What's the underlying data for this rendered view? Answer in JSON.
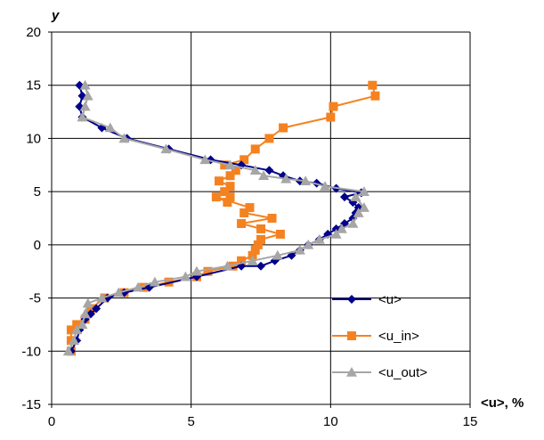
{
  "chart_data": {
    "type": "scatter",
    "title": "",
    "xlabel": "<u>, %",
    "ylabel": "y",
    "xlim": [
      0,
      15
    ],
    "ylim": [
      -15,
      20
    ],
    "xticks": [
      "0",
      "5",
      "10",
      "15"
    ],
    "yticks": [
      "-15",
      "-10",
      "-5",
      "0",
      "5",
      "10",
      "15",
      "20"
    ],
    "grid": true,
    "legend": "right",
    "series": [
      {
        "name": "<u>",
        "color": "#00008B",
        "marker": "diamond",
        "points": [
          [
            1.0,
            15
          ],
          [
            1.1,
            14
          ],
          [
            1.0,
            13
          ],
          [
            1.1,
            12
          ],
          [
            1.8,
            11
          ],
          [
            2.7,
            10
          ],
          [
            4.2,
            9
          ],
          [
            5.7,
            8
          ],
          [
            6.8,
            7.5
          ],
          [
            7.8,
            7
          ],
          [
            8.3,
            6.5
          ],
          [
            8.9,
            6
          ],
          [
            9.5,
            5.8
          ],
          [
            10.2,
            5.3
          ],
          [
            11.1,
            4.9
          ],
          [
            10.5,
            4.5
          ],
          [
            10.8,
            4
          ],
          [
            11.0,
            3.5
          ],
          [
            10.9,
            3
          ],
          [
            10.8,
            2.5
          ],
          [
            10.5,
            2
          ],
          [
            10.2,
            1.5
          ],
          [
            9.9,
            1
          ],
          [
            9.6,
            0.5
          ],
          [
            9.2,
            0
          ],
          [
            8.9,
            -0.5
          ],
          [
            8.6,
            -1
          ],
          [
            8.0,
            -1.5
          ],
          [
            7.5,
            -2
          ],
          [
            6.8,
            -2
          ],
          [
            5.2,
            -3
          ],
          [
            3.5,
            -4
          ],
          [
            2.6,
            -4.5
          ],
          [
            2.0,
            -5
          ],
          [
            1.6,
            -6
          ],
          [
            1.4,
            -6.5
          ],
          [
            1.2,
            -7
          ],
          [
            1.0,
            -8
          ],
          [
            0.9,
            -9
          ],
          [
            0.7,
            -10
          ]
        ]
      },
      {
        "name": "<u_in>",
        "color": "#F58220",
        "marker": "square",
        "points": [
          [
            11.5,
            15
          ],
          [
            11.6,
            14
          ],
          [
            10.1,
            13
          ],
          [
            10.0,
            12
          ],
          [
            8.3,
            11
          ],
          [
            7.8,
            10
          ],
          [
            7.3,
            9
          ],
          [
            6.9,
            8
          ],
          [
            6.2,
            7.5
          ],
          [
            6.6,
            7
          ],
          [
            6.4,
            6.5
          ],
          [
            6.0,
            6
          ],
          [
            6.4,
            5.5
          ],
          [
            6.2,
            5
          ],
          [
            6.4,
            4.5
          ],
          [
            6.3,
            4
          ],
          [
            5.9,
            4.5
          ],
          [
            7.1,
            3.5
          ],
          [
            6.9,
            3
          ],
          [
            7.9,
            2.5
          ],
          [
            6.8,
            2
          ],
          [
            7.5,
            1.5
          ],
          [
            8.2,
            1
          ],
          [
            7.5,
            0.5
          ],
          [
            7.4,
            0
          ],
          [
            7.3,
            -0.5
          ],
          [
            7.2,
            -1
          ],
          [
            6.8,
            -1.5
          ],
          [
            6.5,
            -2
          ],
          [
            5.6,
            -2.5
          ],
          [
            5.2,
            -3
          ],
          [
            4.2,
            -3.5
          ],
          [
            3.3,
            -4
          ],
          [
            2.6,
            -4.5
          ],
          [
            1.9,
            -5
          ],
          [
            1.4,
            -6
          ],
          [
            1.2,
            -7
          ],
          [
            0.9,
            -7.5
          ],
          [
            0.7,
            -8
          ],
          [
            0.7,
            -9
          ],
          [
            0.7,
            -10
          ]
        ]
      },
      {
        "name": "<u_out>",
        "color": "#A6A6A6",
        "marker": "triangle",
        "points": [
          [
            1.2,
            15
          ],
          [
            1.3,
            14
          ],
          [
            1.2,
            13
          ],
          [
            1.1,
            12
          ],
          [
            2.1,
            11
          ],
          [
            2.6,
            10
          ],
          [
            4.1,
            9
          ],
          [
            5.5,
            8
          ],
          [
            6.4,
            7.5
          ],
          [
            7.3,
            7
          ],
          [
            7.6,
            6.5
          ],
          [
            8.4,
            6.2
          ],
          [
            9.1,
            6
          ],
          [
            9.8,
            5.5
          ],
          [
            11.2,
            5
          ],
          [
            10.9,
            4.5
          ],
          [
            11.2,
            3.5
          ],
          [
            11.0,
            3
          ],
          [
            10.8,
            2
          ],
          [
            10.4,
            1.5
          ],
          [
            10.2,
            1
          ],
          [
            9.6,
            0.5
          ],
          [
            9.2,
            0
          ],
          [
            8.9,
            -0.5
          ],
          [
            8.1,
            -1
          ],
          [
            7.2,
            -1.5
          ],
          [
            6.3,
            -2
          ],
          [
            5.2,
            -2.5
          ],
          [
            4.8,
            -3
          ],
          [
            3.7,
            -3.5
          ],
          [
            3.1,
            -4
          ],
          [
            2.4,
            -4.5
          ],
          [
            1.8,
            -5
          ],
          [
            1.3,
            -5.5
          ],
          [
            1.2,
            -6.5
          ],
          [
            1.1,
            -7.5
          ],
          [
            0.9,
            -8
          ],
          [
            0.8,
            -9
          ],
          [
            0.6,
            -10
          ]
        ]
      }
    ]
  }
}
